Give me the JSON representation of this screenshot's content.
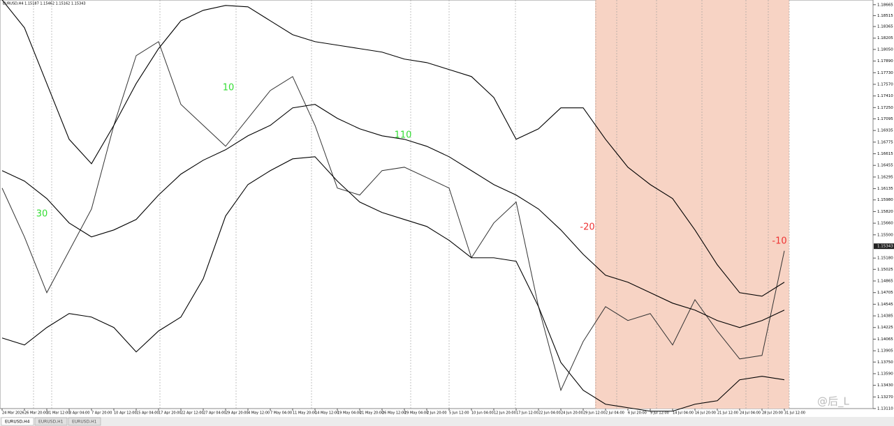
{
  "header": "EURUSD,H4  1.15187 1.15462 1.15162 1.15343",
  "tabs": [
    "EURUSD,H4",
    "EURUSD,H1",
    "EURUSD,H1"
  ],
  "watermark": "@后_L",
  "chart_data": {
    "type": "line",
    "categories": [
      "24 Mar 2026",
      "26 Mar 20:00",
      "31 Mar 12:00",
      "3 Apr 04:00",
      "7 Apr 20:00",
      "10 Apr 12:00",
      "15 Apr 04:00",
      "17 Apr 20:00",
      "22 Apr 12:00",
      "27 Apr 04:00",
      "29 Apr 20:00",
      "4 May 12:00",
      "7 May 04:00",
      "11 May 20:00",
      "14 May 12:00",
      "19 May 04:00",
      "21 May 20:00",
      "26 May 12:00",
      "29 May 04:00",
      "2 Jun 20:00",
      "5 Jun 12:00",
      "10 Jun 04:00",
      "12 Jun 20:00",
      "17 Jun 12:00",
      "22 Jun 04:00",
      "24 Jun 20:00",
      "29 Jun 12:00",
      "2 Jul 04:00",
      "6 Jul 20:00",
      "9 Jul 12:00",
      "14 Jul 04:00",
      "16 Jul 20:00",
      "21 Jul 12:00",
      "24 Jul 04:00",
      "28 Jul 20:00",
      "31 Jul 12:00"
    ],
    "series": [
      {
        "color": "#333333",
        "values": [
          1.16143,
          1.15471,
          1.14704,
          1.1528,
          1.15855,
          1.17006,
          1.17965,
          1.18157,
          1.17294,
          1.17006,
          1.16718,
          1.17102,
          1.17485,
          1.17677,
          1.17006,
          1.16143,
          1.16047,
          1.16383,
          1.1643,
          1.16287,
          1.16143,
          1.15184,
          1.15663,
          1.15951,
          1.14512,
          1.13362,
          1.14033,
          1.14512,
          1.14321,
          1.14417,
          1.13985,
          1.14608,
          1.14177,
          1.13793,
          1.13841,
          1.1528
        ]
      },
      {
        "color": "#000000",
        "values": [
          1.18732,
          1.18348,
          1.17581,
          1.16814,
          1.16478,
          1.17006,
          1.17581,
          1.18061,
          1.18444,
          1.18588,
          1.18655,
          1.18636,
          1.18444,
          1.18253,
          1.18157,
          1.18109,
          1.18061,
          1.18013,
          1.17917,
          1.17869,
          1.17773,
          1.17677,
          1.17389,
          1.16814,
          1.16958,
          1.17246,
          1.17246,
          1.16814,
          1.1643,
          1.16191,
          1.15999,
          1.15567,
          1.15088,
          1.14704,
          1.14656,
          1.14848
        ]
      },
      {
        "color": "#000000",
        "values": [
          1.16383,
          1.16239,
          1.15999,
          1.15663,
          1.15471,
          1.15567,
          1.15711,
          1.16047,
          1.16335,
          1.16526,
          1.1667,
          1.16862,
          1.17006,
          1.17246,
          1.17294,
          1.17102,
          1.16958,
          1.16862,
          1.16814,
          1.16718,
          1.16574,
          1.16383,
          1.16191,
          1.16047,
          1.15855,
          1.15567,
          1.15232,
          1.14944,
          1.14848,
          1.14704,
          1.1456,
          1.14465,
          1.14321,
          1.14225,
          1.14321,
          1.14465
        ]
      },
      {
        "color": "#000000",
        "values": [
          1.14081,
          1.13985,
          1.14225,
          1.14417,
          1.14369,
          1.14225,
          1.13889,
          1.14177,
          1.14369,
          1.14896,
          1.15759,
          1.16191,
          1.16383,
          1.16545,
          1.16574,
          1.16239,
          1.15951,
          1.15807,
          1.15711,
          1.15615,
          1.15424,
          1.15184,
          1.15184,
          1.15136,
          1.14512,
          1.13745,
          1.13362,
          1.1317,
          1.13122,
          1.13074,
          1.13074,
          1.1317,
          1.13218,
          1.13506,
          1.13554,
          1.13506
        ]
      }
    ],
    "ylim": [
      1.1311,
      1.1873
    ],
    "yticks": [
      1.18665,
      1.18515,
      1.18365,
      1.18205,
      {
        "value": 1.1805,
        "label": "1.18050"
      },
      {
        "value": 1.1789,
        "label": "1.17890"
      },
      {
        "value": 1.1773,
        "label": "1.17730"
      },
      {
        "value": 1.1757,
        "label": "1.17570"
      },
      {
        "value": 1.1741,
        "label": "1.17410"
      },
      {
        "value": 1.1725,
        "label": "1.17250"
      },
      1.17095,
      1.16935,
      1.16775,
      1.16615,
      1.16455,
      1.16295,
      1.16135,
      {
        "value": 1.1598,
        "label": "1.15980"
      },
      {
        "value": 1.1582,
        "label": "1.15820"
      },
      {
        "value": 1.1566,
        "label": "1.15660"
      },
      {
        "value": 1.155,
        "label": "1.15500"
      },
      {
        "value": 1.1518,
        "label": "1.15180"
      },
      1.15025,
      1.14865,
      1.14705,
      1.14545,
      1.14385,
      1.14225,
      1.14065,
      1.13905,
      {
        "value": 1.1375,
        "label": "1.13750"
      },
      {
        "value": 1.1359,
        "label": "1.13590"
      },
      {
        "value": 1.1343,
        "label": "1.13430"
      },
      {
        "value": 1.1327,
        "label": "1.13270"
      },
      {
        "value": 1.1311,
        "label": "1.13110"
      }
    ],
    "current_price": 1.15343,
    "annotations": [
      {
        "text": "30",
        "color": "#33dd33"
      },
      {
        "text": "10",
        "color": "#33dd33"
      },
      {
        "text": "110",
        "color": "#33dd33"
      },
      {
        "text": "-20",
        "color": "#ee3333"
      },
      {
        "text": "-10",
        "color": "#ee3333"
      }
    ],
    "shade_color": "#f7d3c4"
  }
}
